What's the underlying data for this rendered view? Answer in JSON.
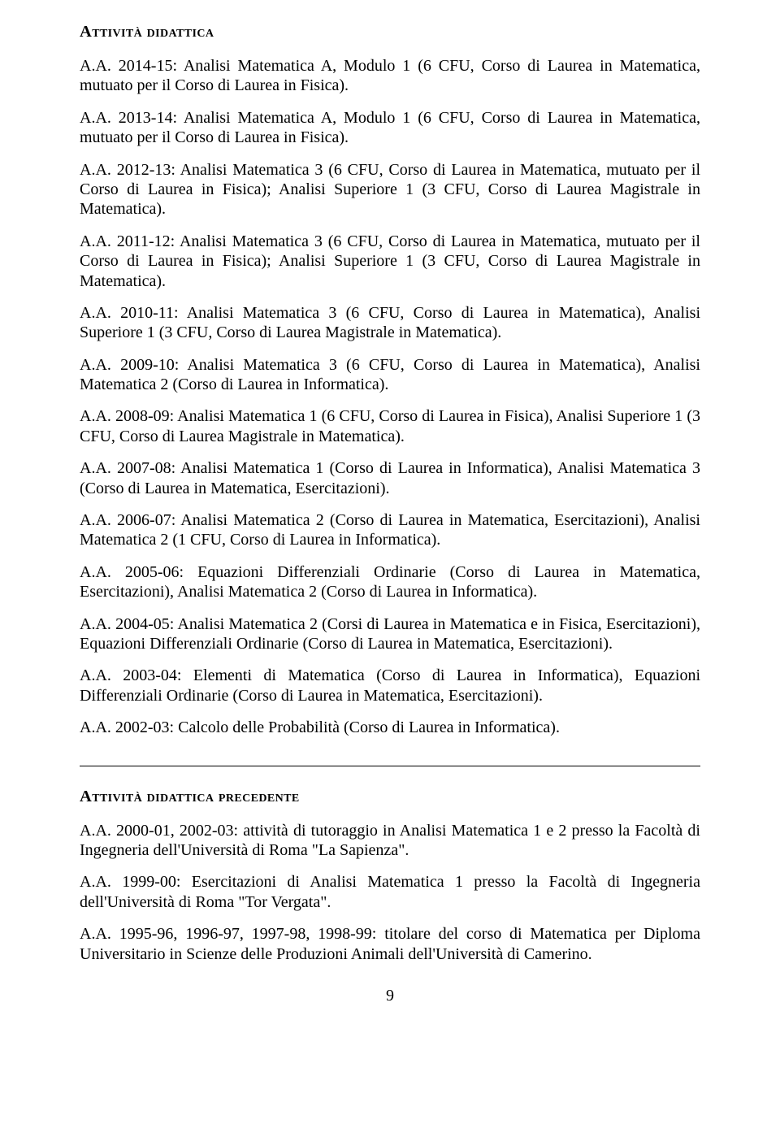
{
  "section1": {
    "heading": "Attività didattica",
    "paragraphs": [
      "A.A. 2014-15: Analisi Matematica A, Modulo 1 (6 CFU, Corso di Laurea in Matematica, mutuato per il Corso di Laurea in Fisica).",
      "A.A. 2013-14: Analisi Matematica A, Modulo 1 (6 CFU, Corso di Laurea in Matematica, mutuato per il Corso di Laurea in Fisica).",
      "A.A. 2012-13: Analisi Matematica 3 (6 CFU, Corso di Laurea in Matematica, mutuato per il Corso di Laurea in Fisica); Analisi Superiore 1 (3 CFU, Corso di Laurea Magistrale in Matematica).",
      "A.A. 2011-12: Analisi Matematica 3 (6 CFU, Corso di Laurea in Matematica, mutuato per il Corso di Laurea in Fisica); Analisi Superiore 1 (3 CFU, Corso di Laurea Magistrale in Matematica).",
      "A.A. 2010-11: Analisi Matematica 3 (6 CFU, Corso di Laurea in Matematica), Analisi Superiore 1 (3 CFU, Corso di Laurea Magistrale in Matematica).",
      "A.A. 2009-10: Analisi Matematica 3 (6 CFU, Corso di Laurea in Matematica), Analisi Matematica 2 (Corso di Laurea in Informatica).",
      "A.A. 2008-09: Analisi Matematica 1 (6 CFU, Corso di Laurea in Fisica), Analisi Superiore 1 (3 CFU, Corso di Laurea Magistrale in Matematica).",
      "A.A. 2007-08: Analisi Matematica 1 (Corso di Laurea in Informatica), Analisi Matematica 3 (Corso di Laurea in Matematica, Esercitazioni).",
      "A.A. 2006-07: Analisi Matematica 2 (Corso di Laurea in Matematica, Esercitazioni), Analisi Matematica 2 (1 CFU, Corso di Laurea in Informatica).",
      "A.A. 2005-06: Equazioni Differenziali Ordinarie (Corso di Laurea in Matematica, Esercitazioni), Analisi Matematica 2 (Corso di Laurea in Informatica).",
      "A.A. 2004-05: Analisi Matematica 2 (Corsi di Laurea in Matematica e in Fisica, Esercitazioni), Equazioni Differenziali Ordinarie (Corso di Laurea in Matematica, Esercitazioni).",
      "A.A. 2003-04: Elementi di Matematica (Corso di Laurea in Informatica), Equazioni Differenziali Ordinarie (Corso di Laurea in Matematica, Esercitazioni).",
      "A.A. 2002-03: Calcolo delle Probabilità (Corso di Laurea in Informatica)."
    ]
  },
  "section2": {
    "heading": "Attività didattica precedente",
    "paragraphs": [
      "A.A. 2000-01, 2002-03: attività di tutoraggio in Analisi Matematica 1 e 2 presso la Facoltà di Ingegneria dell'Università di Roma \"La Sapienza\".",
      "A.A. 1999-00: Esercitazioni di Analisi Matematica 1 presso la Facoltà di Ingegneria dell'Università di Roma \"Tor Vergata\".",
      "A.A. 1995-96, 1996-97, 1997-98, 1998-99: titolare del corso di Matematica per Diploma Universitario in Scienze delle Produzioni Animali dell'Università di Camerino."
    ]
  },
  "page_number": "9"
}
